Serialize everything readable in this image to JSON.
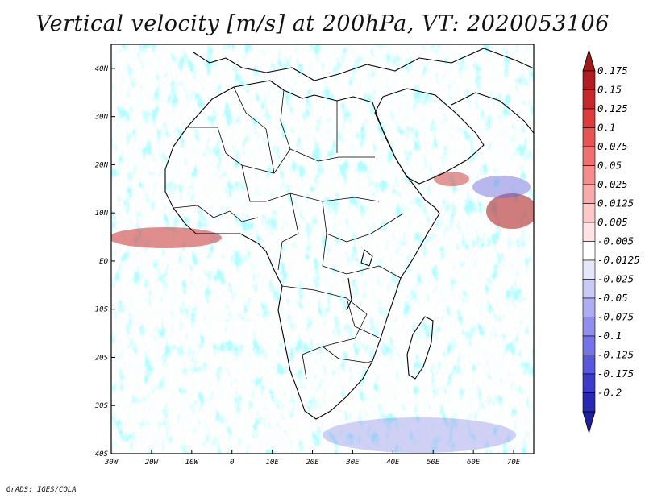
{
  "title": "Vertical velocity [m/s] at 200hPa, VT: 2020053106",
  "credit": "GrADS: IGES/COLA",
  "map": {
    "region": "Africa",
    "field": "Vertical velocity",
    "units": "m/s",
    "level": "200hPa",
    "valid_time": "2020053106",
    "lon_range": [
      -30,
      75
    ],
    "lat_range": [
      -40,
      45
    ],
    "lon_ticks": [
      {
        "value": -30,
        "label": "30W"
      },
      {
        "value": -20,
        "label": "20W"
      },
      {
        "value": -10,
        "label": "10W"
      },
      {
        "value": 0,
        "label": "0"
      },
      {
        "value": 10,
        "label": "10E"
      },
      {
        "value": 20,
        "label": "20E"
      },
      {
        "value": 30,
        "label": "30E"
      },
      {
        "value": 40,
        "label": "40E"
      },
      {
        "value": 50,
        "label": "50E"
      },
      {
        "value": 60,
        "label": "60E"
      },
      {
        "value": 70,
        "label": "70E"
      }
    ],
    "lat_ticks": [
      {
        "value": 40,
        "label": "40N"
      },
      {
        "value": 30,
        "label": "30N"
      },
      {
        "value": 20,
        "label": "20N"
      },
      {
        "value": 10,
        "label": "10N"
      },
      {
        "value": 0,
        "label": "EQ"
      },
      {
        "value": -10,
        "label": "10S"
      },
      {
        "value": -20,
        "label": "20S"
      },
      {
        "value": -30,
        "label": "30S"
      },
      {
        "value": -40,
        "label": "40S"
      }
    ]
  },
  "colorbar": {
    "levels": [
      {
        "label": "0.175",
        "color": "#b01e24"
      },
      {
        "label": "0.15",
        "color": "#c8282c"
      },
      {
        "label": "0.125",
        "color": "#dc3c3c"
      },
      {
        "label": "0.1",
        "color": "#e85454"
      },
      {
        "label": "0.075",
        "color": "#ef7070"
      },
      {
        "label": "0.05",
        "color": "#f48e8e"
      },
      {
        "label": "0.025",
        "color": "#f9aaaa"
      },
      {
        "label": "0.0125",
        "color": "#fcc8c8"
      },
      {
        "label": "0.005",
        "color": "#fde3e3"
      },
      {
        "label": "-0.005",
        "color": "#ffffff"
      },
      {
        "label": "-0.0125",
        "color": "#e6e6fb"
      },
      {
        "label": "-0.025",
        "color": "#cacaf7"
      },
      {
        "label": "-0.05",
        "color": "#adadf2"
      },
      {
        "label": "-0.075",
        "color": "#9090ec"
      },
      {
        "label": "-0.1",
        "color": "#7474e4"
      },
      {
        "label": "-0.125",
        "color": "#5858da"
      },
      {
        "label": "-0.175",
        "color": "#3c3cc8"
      },
      {
        "label": "-0.2",
        "color": "#2828b0"
      }
    ],
    "top_color": "#a01818",
    "bottom_color": "#1e1ea0"
  }
}
